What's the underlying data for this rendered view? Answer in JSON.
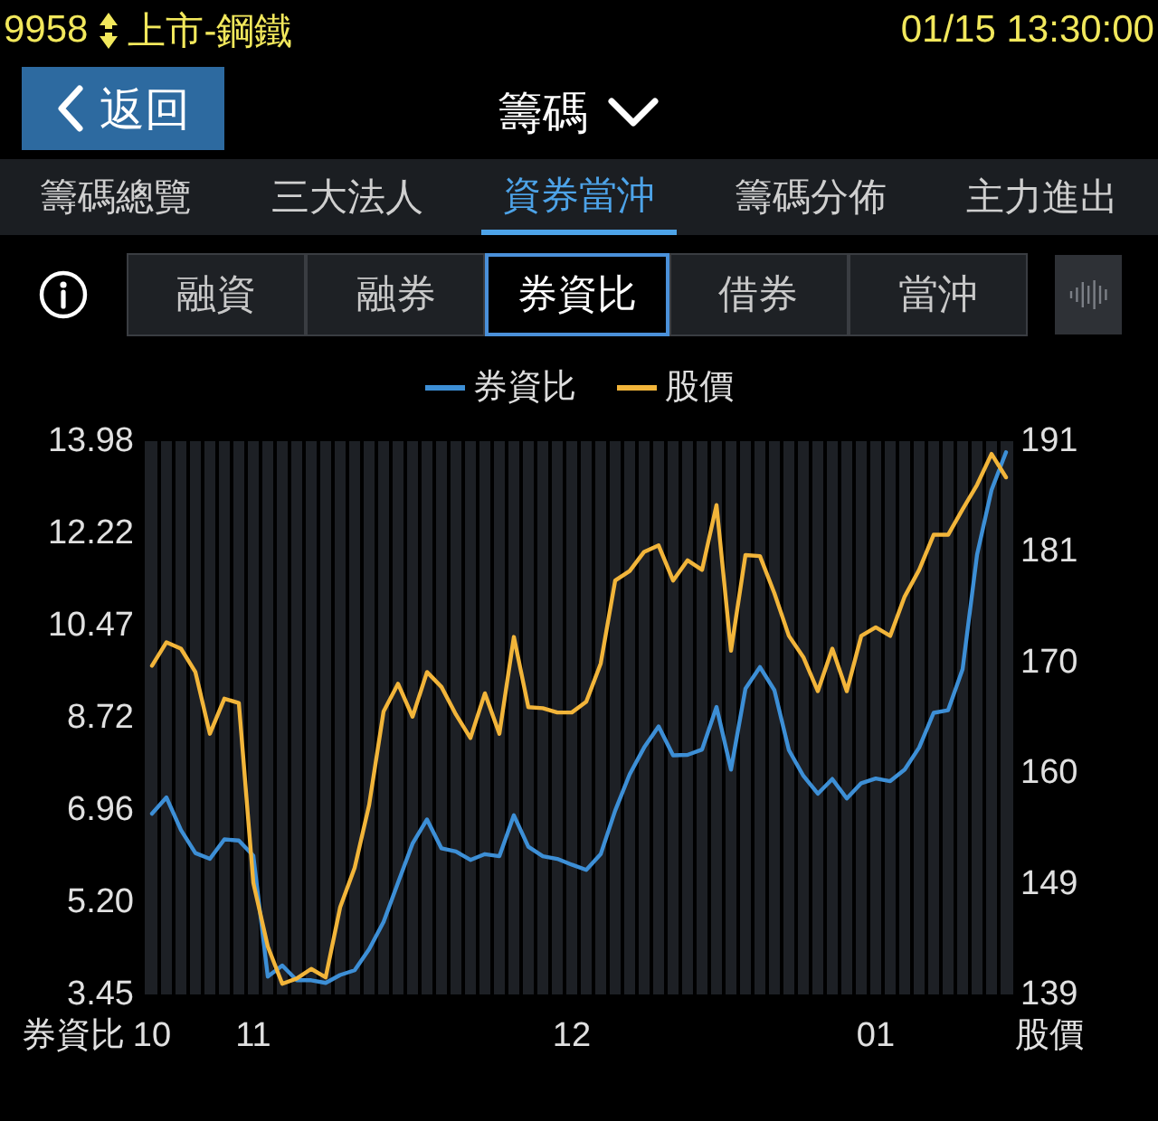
{
  "chart_data": {
    "type": "line",
    "title": "籌碼",
    "annotations": [
      "9958",
      "上市-鋼鐵",
      "01/15 13:30:00",
      "返回",
      "籌碼總覽",
      "三大法人",
      "資券當沖",
      "籌碼分佈",
      "主力進出",
      "融資",
      "融券",
      "券資比",
      "借券",
      "當沖"
    ],
    "ylabel": "券資比",
    "y2label": "股價",
    "legend": "top",
    "grid": "x",
    "categories": [
      "10",
      null,
      null,
      null,
      null,
      null,
      null,
      "11",
      null,
      null,
      null,
      null,
      null,
      null,
      null,
      null,
      null,
      null,
      null,
      null,
      null,
      null,
      null,
      null,
      null,
      null,
      null,
      null,
      null,
      "12",
      null,
      null,
      null,
      null,
      null,
      null,
      null,
      null,
      null,
      null,
      null,
      null,
      null,
      null,
      null,
      null,
      null,
      null,
      null,
      null,
      "01",
      null,
      null,
      null,
      null,
      null,
      null,
      null,
      null,
      null
    ],
    "ylim": [
      3.45,
      13.98
    ],
    "yticks": [
      3.45,
      {
        "value": 5.205,
        "label": "5.20"
      },
      6.96,
      {
        "value": 8.715,
        "label": "8.72"
      },
      10.47,
      {
        "value": 12.225,
        "label": "12.22"
      },
      13.98
    ],
    "y2lim": [
      139,
      191
    ],
    "y2ticks": [
      139,
      {
        "value": 149.4,
        "label": "149"
      },
      {
        "value": 159.8,
        "label": "160"
      },
      {
        "value": 170.2,
        "label": "170"
      },
      {
        "value": 180.6,
        "label": "181"
      },
      191
    ],
    "series": [
      {
        "name": "券資比",
        "color": "#3d8fd6",
        "values": [
          6.89,
          7.2,
          6.58,
          6.14,
          6.03,
          6.4,
          6.38,
          6.09,
          3.79,
          4.0,
          3.72,
          3.72,
          3.67,
          3.82,
          3.91,
          4.31,
          4.83,
          5.58,
          6.32,
          6.78,
          6.23,
          6.17,
          6.01,
          6.12,
          6.08,
          6.86,
          6.26,
          6.08,
          6.03,
          5.92,
          5.82,
          6.12,
          6.95,
          7.64,
          8.15,
          8.55,
          8.0,
          8.01,
          8.11,
          8.92,
          7.73,
          9.27,
          9.68,
          9.24,
          8.1,
          7.61,
          7.27,
          7.55,
          7.18,
          7.47,
          7.56,
          7.51,
          7.73,
          8.15,
          8.81,
          8.86,
          9.64,
          11.82,
          13.05,
          13.77
        ]
      },
      {
        "name": "股價",
        "color": "#f2b53a",
        "axis": "y2",
        "values": [
          169.9,
          172.1,
          171.5,
          169.3,
          163.5,
          166.8,
          166.4,
          149.5,
          143.5,
          140.0,
          140.5,
          141.4,
          140.6,
          147.2,
          150.9,
          156.8,
          165.6,
          168.2,
          165.1,
          169.3,
          167.9,
          165.3,
          163.1,
          167.3,
          163.5,
          172.6,
          166.0,
          165.9,
          165.5,
          165.5,
          166.5,
          170.1,
          177.9,
          178.8,
          180.6,
          181.2,
          177.9,
          179.8,
          178.9,
          185.0,
          171.3,
          180.3,
          180.2,
          176.7,
          172.7,
          170.7,
          167.5,
          171.5,
          167.5,
          172.7,
          173.5,
          172.7,
          176.4,
          178.9,
          182.2,
          182.2,
          184.6,
          186.9,
          189.8,
          187.6
        ]
      }
    ]
  }
}
